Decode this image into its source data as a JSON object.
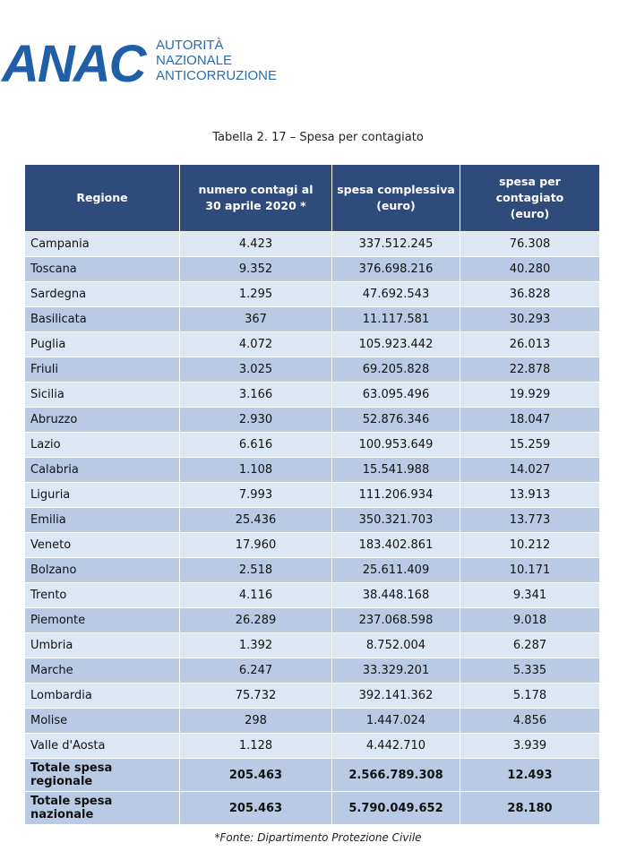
{
  "header": {
    "logo": "ANAC",
    "org_lines": [
      "AUTORITÀ",
      "NAZIONALE",
      "ANTICORRUZIONE"
    ]
  },
  "caption": "Tabella 2. 17 – Spesa per contagiato",
  "table": {
    "columns": [
      [
        "Regione"
      ],
      [
        "numero contagi al",
        "30 aprile 2020 *"
      ],
      [
        "spesa complessiva",
        "(euro)"
      ],
      [
        "spesa per",
        "contagiato",
        "(euro)"
      ]
    ],
    "rows": [
      [
        "Campania",
        "4.423",
        "337.512.245",
        "76.308"
      ],
      [
        "Toscana",
        "9.352",
        "376.698.216",
        "40.280"
      ],
      [
        "Sardegna",
        "1.295",
        "47.692.543",
        "36.828"
      ],
      [
        "Basilicata",
        "367",
        "11.117.581",
        "30.293"
      ],
      [
        "Puglia",
        "4.072",
        "105.923.442",
        "26.013"
      ],
      [
        "Friuli",
        "3.025",
        "69.205.828",
        "22.878"
      ],
      [
        "Sicilia",
        "3.166",
        "63.095.496",
        "19.929"
      ],
      [
        "Abruzzo",
        "2.930",
        "52.876.346",
        "18.047"
      ],
      [
        "Lazio",
        "6.616",
        "100.953.649",
        "15.259"
      ],
      [
        "Calabria",
        "1.108",
        "15.541.988",
        "14.027"
      ],
      [
        "Liguria",
        "7.993",
        "111.206.934",
        "13.913"
      ],
      [
        "Emilia",
        "25.436",
        "350.321.703",
        "13.773"
      ],
      [
        "Veneto",
        "17.960",
        "183.402.861",
        "10.212"
      ],
      [
        "Bolzano",
        "2.518",
        "25.611.409",
        "10.171"
      ],
      [
        "Trento",
        "4.116",
        "38.448.168",
        "9.341"
      ],
      [
        "Piemonte",
        "26.289",
        "237.068.598",
        "9.018"
      ],
      [
        "Umbria",
        "1.392",
        "8.752.004",
        "6.287"
      ],
      [
        "Marche",
        "6.247",
        "33.329.201",
        "5.335"
      ],
      [
        "Lombardia",
        "75.732",
        "392.141.362",
        "5.178"
      ],
      [
        "Molise",
        "298",
        "1.447.024",
        "4.856"
      ],
      [
        "Valle d'Aosta",
        "1.128",
        "4.442.710",
        "3.939"
      ]
    ],
    "totals": [
      [
        "Totale spesa regionale",
        "205.463",
        "2.566.789.308",
        "12.493"
      ],
      [
        "Totale spesa nazionale",
        "205.463",
        "5.790.049.652",
        "28.180"
      ]
    ]
  },
  "footnote": "*Fonte: Dipartimento Protezione Civile"
}
